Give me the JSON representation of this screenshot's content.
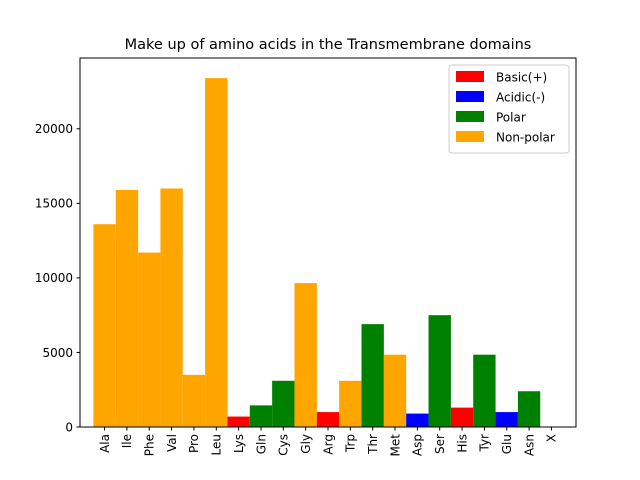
{
  "chart_data": {
    "type": "bar",
    "title": "Make up of amino acids in the Transmembrane domains",
    "xlabel": "",
    "ylabel": "",
    "ylim": [
      0,
      24750
    ],
    "yticks": [
      0,
      5000,
      10000,
      15000,
      20000
    ],
    "grid": false,
    "legend_position": "top-right",
    "categories": [
      "Ala",
      "Ile",
      "Phe",
      "Val",
      "Pro",
      "Leu",
      "Lys",
      "Gln",
      "Cys",
      "Gly",
      "Arg",
      "Trp",
      "Thr",
      "Met",
      "Asp",
      "Ser",
      "His",
      "Tyr",
      "Glu",
      "Asn",
      "X"
    ],
    "values": [
      13600,
      15900,
      11700,
      16000,
      3500,
      23400,
      700,
      1450,
      3100,
      9650,
      1000,
      3100,
      6900,
      4850,
      900,
      7500,
      1300,
      4850,
      1000,
      2400,
      0
    ],
    "bar_groups": [
      "Non-polar",
      "Non-polar",
      "Non-polar",
      "Non-polar",
      "Non-polar",
      "Non-polar",
      "Basic(+)",
      "Polar",
      "Polar",
      "Non-polar",
      "Basic(+)",
      "Non-polar",
      "Polar",
      "Non-polar",
      "Acidic(-)",
      "Polar",
      "Basic(+)",
      "Polar",
      "Acidic(-)",
      "Polar",
      "Polar"
    ],
    "series": [
      {
        "name": "Basic(+)",
        "color": "#ff0000"
      },
      {
        "name": "Acidic(-)",
        "color": "#0000ff"
      },
      {
        "name": "Polar",
        "color": "#008000"
      },
      {
        "name": "Non-polar",
        "color": "#ffa500"
      }
    ]
  }
}
